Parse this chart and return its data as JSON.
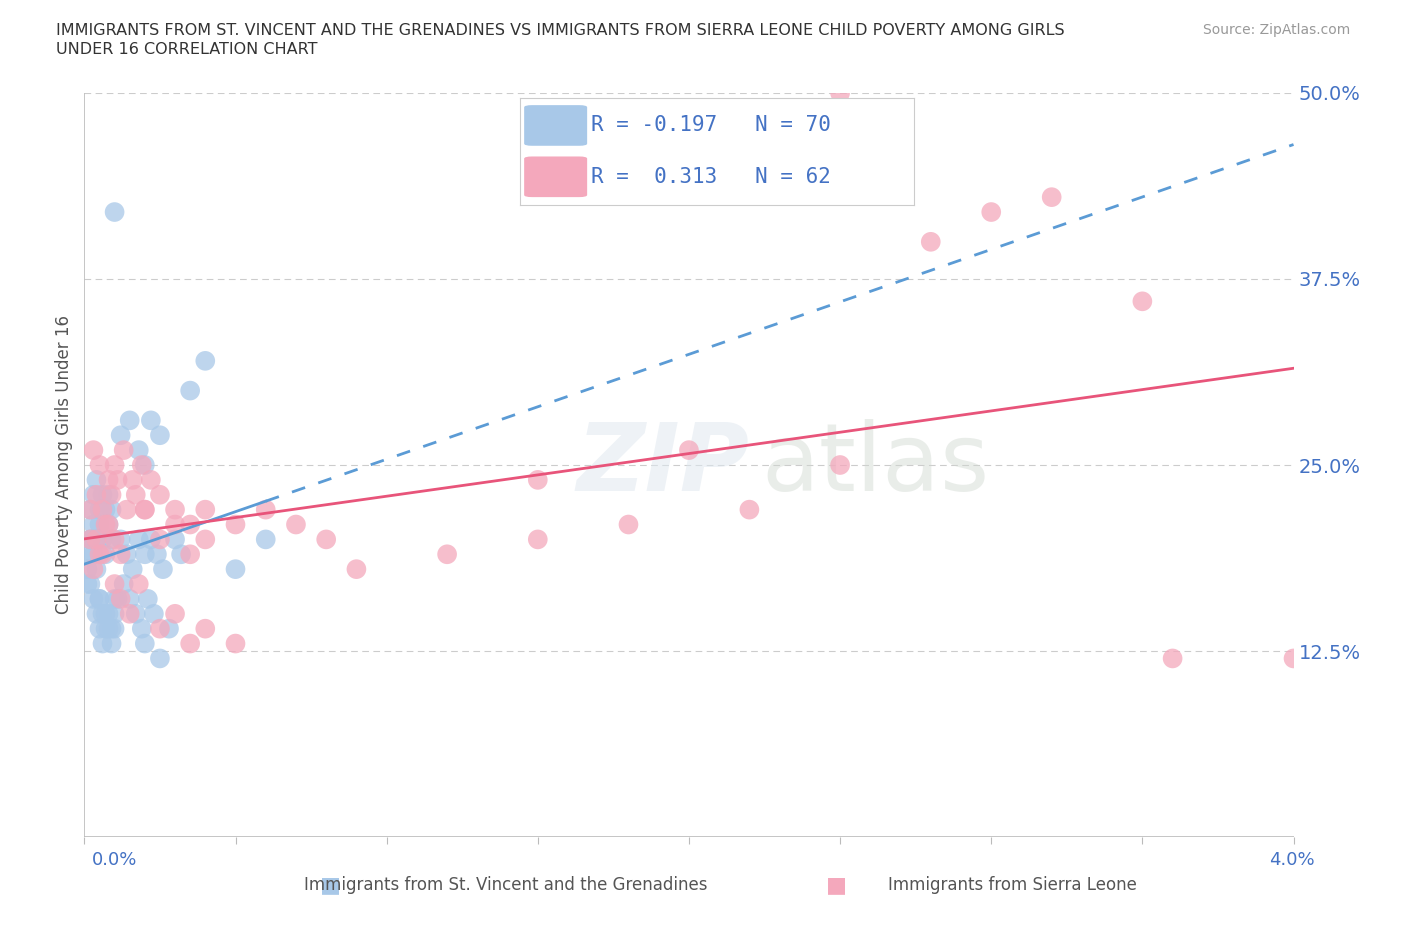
{
  "title_line1": "IMMIGRANTS FROM ST. VINCENT AND THE GRENADINES VS IMMIGRANTS FROM SIERRA LEONE CHILD POVERTY AMONG GIRLS",
  "title_line2": "UNDER 16 CORRELATION CHART",
  "source": "Source: ZipAtlas.com",
  "ylabel_label": "Child Poverty Among Girls Under 16",
  "legend1_label": "Immigrants from St. Vincent and the Grenadines",
  "legend2_label": "Immigrants from Sierra Leone",
  "R1": -0.197,
  "N1": 70,
  "R2": 0.313,
  "N2": 62,
  "color_blue": "#a8c8e8",
  "color_pink": "#f4a8bc",
  "color_blue_line": "#5b9bd5",
  "color_pink_line": "#e8547a",
  "color_axis_text": "#4472c4",
  "xlim": [
    0.0,
    0.04
  ],
  "ylim": [
    0.0,
    0.5
  ],
  "blue_x": [
    0.0002,
    0.0003,
    0.0004,
    0.0005,
    0.0006,
    0.0007,
    0.0008,
    0.0009,
    0.001,
    0.0002,
    0.0003,
    0.0004,
    0.0005,
    0.0006,
    0.0007,
    0.0008,
    0.0009,
    0.001,
    0.0002,
    0.0003,
    0.0004,
    0.0005,
    0.0006,
    0.0007,
    0.0008,
    0.0009,
    0.0012,
    0.0014,
    0.0016,
    0.0018,
    0.002,
    0.0022,
    0.0024,
    0.0026,
    0.0012,
    0.0015,
    0.0018,
    0.002,
    0.0022,
    0.0025,
    0.003,
    0.0032,
    0.0035,
    0.004,
    0.005,
    0.006,
    0.0001,
    0.0001,
    0.0001,
    0.0002,
    0.0003,
    0.0004,
    0.0005,
    0.0006,
    0.0007,
    0.0008,
    0.0009,
    0.001,
    0.0011,
    0.0013,
    0.0015,
    0.0017,
    0.0019,
    0.0021,
    0.0023,
    0.0028,
    0.002,
    0.0025,
    0.001,
    0.0005
  ],
  "blue_y": [
    0.2,
    0.19,
    0.18,
    0.21,
    0.2,
    0.19,
    0.21,
    0.2,
    0.42,
    0.17,
    0.16,
    0.15,
    0.16,
    0.15,
    0.14,
    0.15,
    0.14,
    0.16,
    0.22,
    0.23,
    0.24,
    0.22,
    0.23,
    0.22,
    0.23,
    0.22,
    0.2,
    0.19,
    0.18,
    0.2,
    0.19,
    0.2,
    0.19,
    0.18,
    0.27,
    0.28,
    0.26,
    0.25,
    0.28,
    0.27,
    0.2,
    0.19,
    0.3,
    0.32,
    0.18,
    0.2,
    0.18,
    0.17,
    0.19,
    0.2,
    0.21,
    0.2,
    0.14,
    0.13,
    0.15,
    0.14,
    0.13,
    0.14,
    0.16,
    0.17,
    0.16,
    0.15,
    0.14,
    0.16,
    0.15,
    0.14,
    0.13,
    0.12,
    0.15,
    0.16
  ],
  "pink_x": [
    0.0002,
    0.0003,
    0.0005,
    0.0007,
    0.001,
    0.0012,
    0.0015,
    0.0018,
    0.0002,
    0.0004,
    0.0006,
    0.0009,
    0.0011,
    0.0014,
    0.0017,
    0.002,
    0.0003,
    0.0005,
    0.0008,
    0.001,
    0.0013,
    0.0016,
    0.0019,
    0.0022,
    0.0025,
    0.003,
    0.0035,
    0.004,
    0.005,
    0.006,
    0.007,
    0.008,
    0.0025,
    0.003,
    0.0035,
    0.004,
    0.005,
    0.009,
    0.012,
    0.015,
    0.018,
    0.022,
    0.025,
    0.028,
    0.032,
    0.036,
    0.04,
    0.0004,
    0.0006,
    0.0008,
    0.001,
    0.0012,
    0.002,
    0.0025,
    0.003,
    0.0035,
    0.004,
    0.015,
    0.02,
    0.025,
    0.03,
    0.035
  ],
  "pink_y": [
    0.2,
    0.18,
    0.19,
    0.21,
    0.17,
    0.16,
    0.15,
    0.17,
    0.22,
    0.23,
    0.22,
    0.23,
    0.24,
    0.22,
    0.23,
    0.22,
    0.26,
    0.25,
    0.24,
    0.25,
    0.26,
    0.24,
    0.25,
    0.24,
    0.2,
    0.21,
    0.19,
    0.2,
    0.21,
    0.22,
    0.21,
    0.2,
    0.14,
    0.15,
    0.13,
    0.14,
    0.13,
    0.18,
    0.19,
    0.2,
    0.21,
    0.22,
    0.5,
    0.4,
    0.43,
    0.12,
    0.12,
    0.2,
    0.19,
    0.21,
    0.2,
    0.19,
    0.22,
    0.23,
    0.22,
    0.21,
    0.22,
    0.24,
    0.26,
    0.25,
    0.42,
    0.36
  ]
}
